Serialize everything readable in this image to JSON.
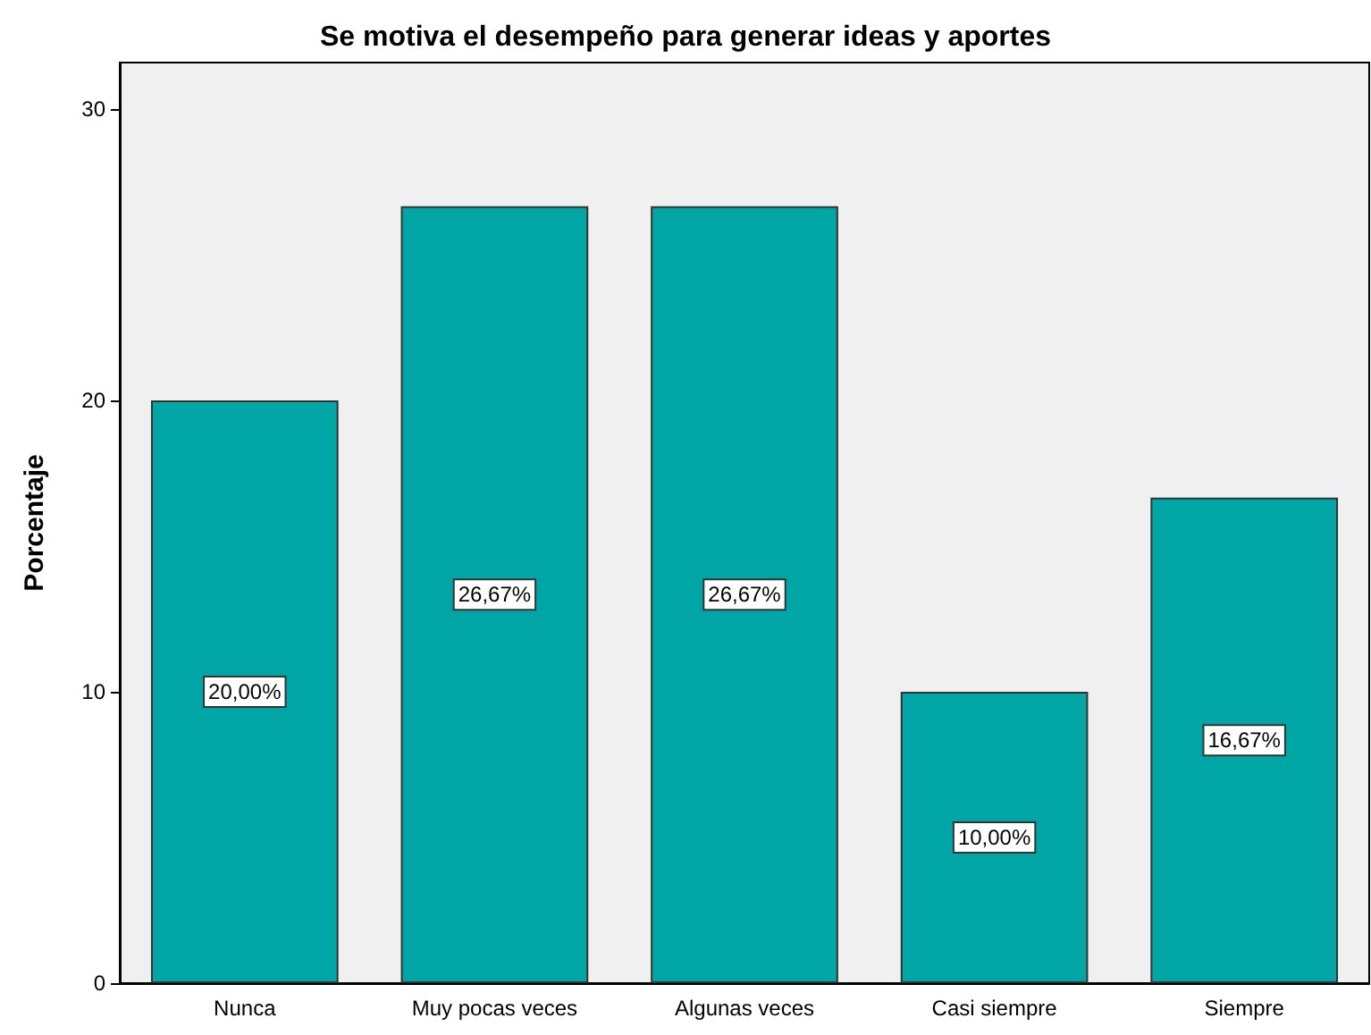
{
  "chart_data": {
    "type": "bar",
    "title": "Se motiva el desempeño para generar ideas y aportes",
    "ylabel": "Porcentaje",
    "categories": [
      "Nunca",
      "Muy pocas veces",
      "Algunas veces",
      "Casi siempre",
      "Siempre"
    ],
    "values": [
      20.0,
      26.67,
      26.67,
      10.0,
      16.67
    ],
    "value_labels": [
      "20,00%",
      "26,67%",
      "26,67%",
      "10,00%",
      "16,67%"
    ],
    "color": "#00a6a6",
    "ylim": [
      0,
      31.6
    ],
    "yticks": [
      0,
      10,
      20,
      30
    ],
    "grid": false
  }
}
